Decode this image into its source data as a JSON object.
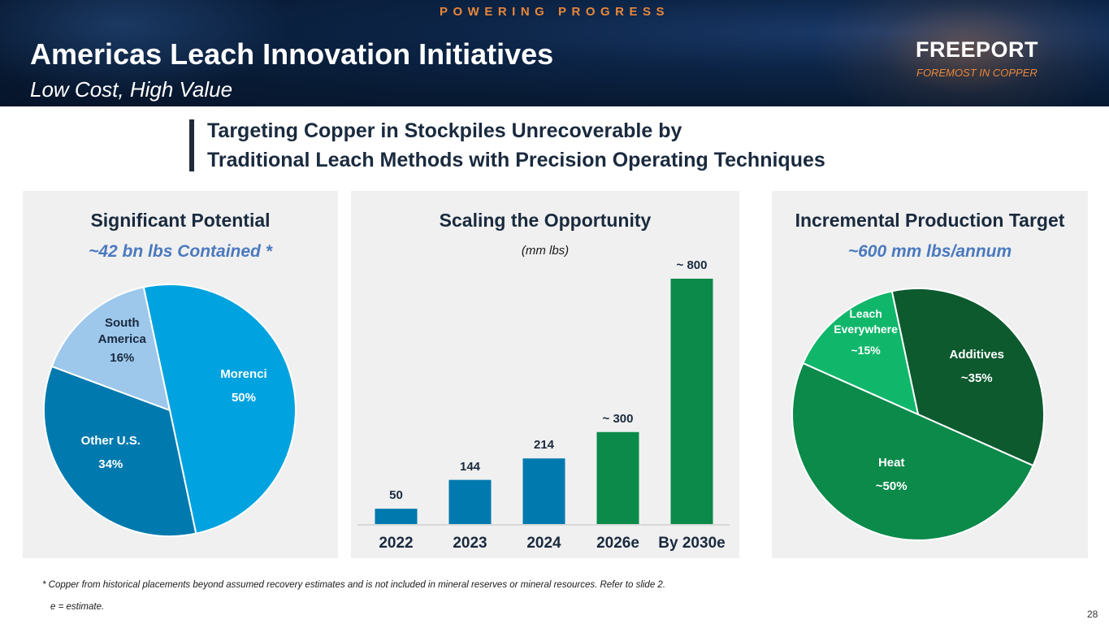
{
  "header": {
    "tagline": "POWERING PROGRESS",
    "title": "Americas Leach Innovation Initiatives",
    "subtitle": "Low Cost, High Value",
    "logo": {
      "name": "FREEPORT",
      "tag": "FOREMOST IN COPPER"
    }
  },
  "headline": {
    "line1": "Targeting Copper in Stockpiles Unrecoverable by",
    "line2": "Traditional Leach Methods with Precision Operating Techniques"
  },
  "colors": {
    "dark_navy": "#1a2a3e",
    "accent_blue": "#4a79be",
    "morenci": "#00a3e0",
    "other_us": "#0079ae",
    "south_america": "#9dc8ec",
    "bar_actual": "#0079ae",
    "bar_estimate": "#0b8a4a",
    "additives": "#0d5a2f",
    "heat": "#0b8a4a",
    "leach_everywhere": "#10b76a"
  },
  "panels": {
    "potential": {
      "title": "Significant Potential",
      "subtitle": "~42 bn lbs Contained *"
    },
    "scaling": {
      "title": "Scaling the Opportunity",
      "unit": "(mm lbs)"
    },
    "production": {
      "title": "Incremental Production Target",
      "subtitle": "~600 mm lbs/annum"
    }
  },
  "chart_data": [
    {
      "type": "pie",
      "title": "Significant Potential",
      "subtitle": "~42 bn lbs Contained *",
      "slices": [
        {
          "name": "Morenci",
          "value": 50,
          "label": "50%"
        },
        {
          "name": "Other U.S.",
          "value": 34,
          "label": "34%"
        },
        {
          "name": "South America",
          "value": 16,
          "label": "16%"
        }
      ]
    },
    {
      "type": "bar",
      "title": "Scaling the Opportunity",
      "ylabel": "(mm lbs)",
      "categories": [
        "2022",
        "2023",
        "2024",
        "2026e",
        "By 2030e"
      ],
      "values": [
        50,
        144,
        214,
        300,
        800
      ],
      "value_labels": [
        "50",
        "144",
        "214",
        "~ 300",
        "~ 800"
      ],
      "estimate": [
        false,
        false,
        false,
        true,
        true
      ],
      "ylim": [
        0,
        800
      ]
    },
    {
      "type": "pie",
      "title": "Incremental Production Target",
      "subtitle": "~600 mm lbs/annum",
      "slices": [
        {
          "name": "Additives",
          "value": 35,
          "label": "~35%"
        },
        {
          "name": "Heat",
          "value": 50,
          "label": "~50%"
        },
        {
          "name": "Leach Everywhere",
          "value": 15,
          "label": "~15%"
        }
      ]
    }
  ],
  "footnotes": {
    "note1": "* Copper from historical placements beyond assumed recovery estimates and is not included in mineral reserves or mineral resources. Refer to slide 2.",
    "note2": "e = estimate."
  },
  "page_number": "28"
}
